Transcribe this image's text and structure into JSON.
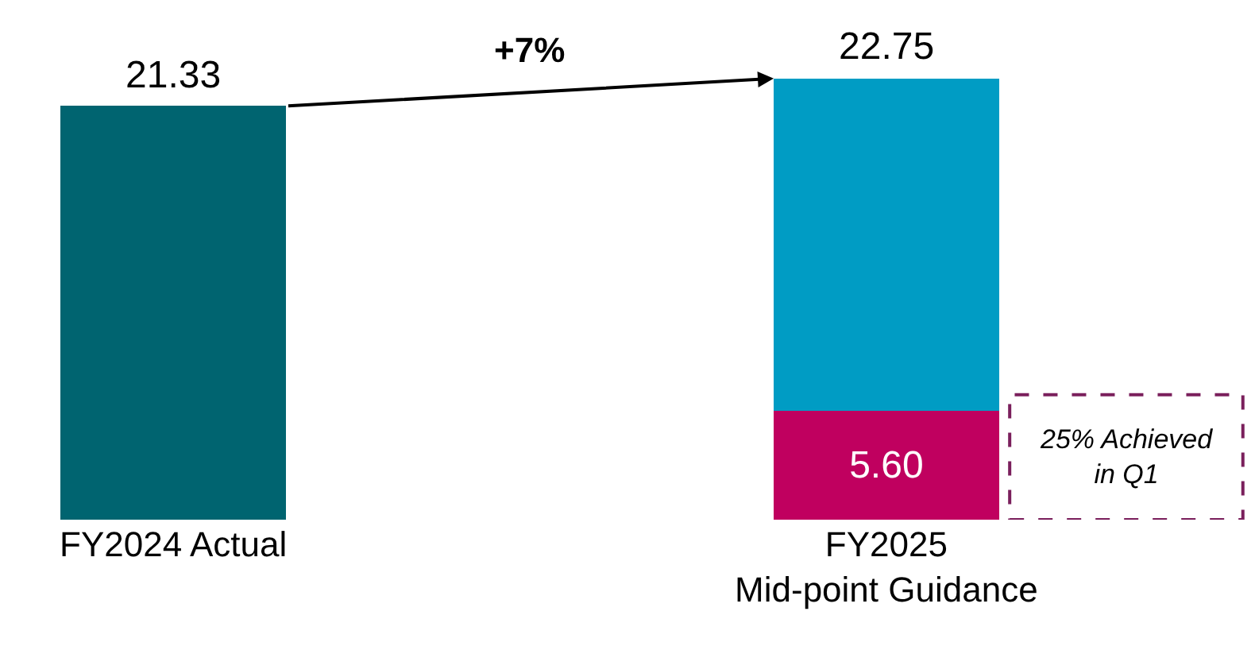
{
  "chart_data": {
    "type": "bar",
    "stacked": true,
    "legend": false,
    "categories": [
      "FY2024 Actual",
      "FY2025\nMid-point Guidance"
    ],
    "series": [
      {
        "colors": [
          "#006470",
          "#c0005f"
        ],
        "values": [
          21.33,
          5.6
        ],
        "value_labels": [
          null,
          "5.60"
        ]
      },
      {
        "color": "#009cc4",
        "values": [
          null,
          17.15
        ]
      }
    ],
    "totals": [
      "21.33",
      "22.75"
    ],
    "annotations": [
      "+7%",
      "25% Achieved\nin Q1"
    ]
  }
}
